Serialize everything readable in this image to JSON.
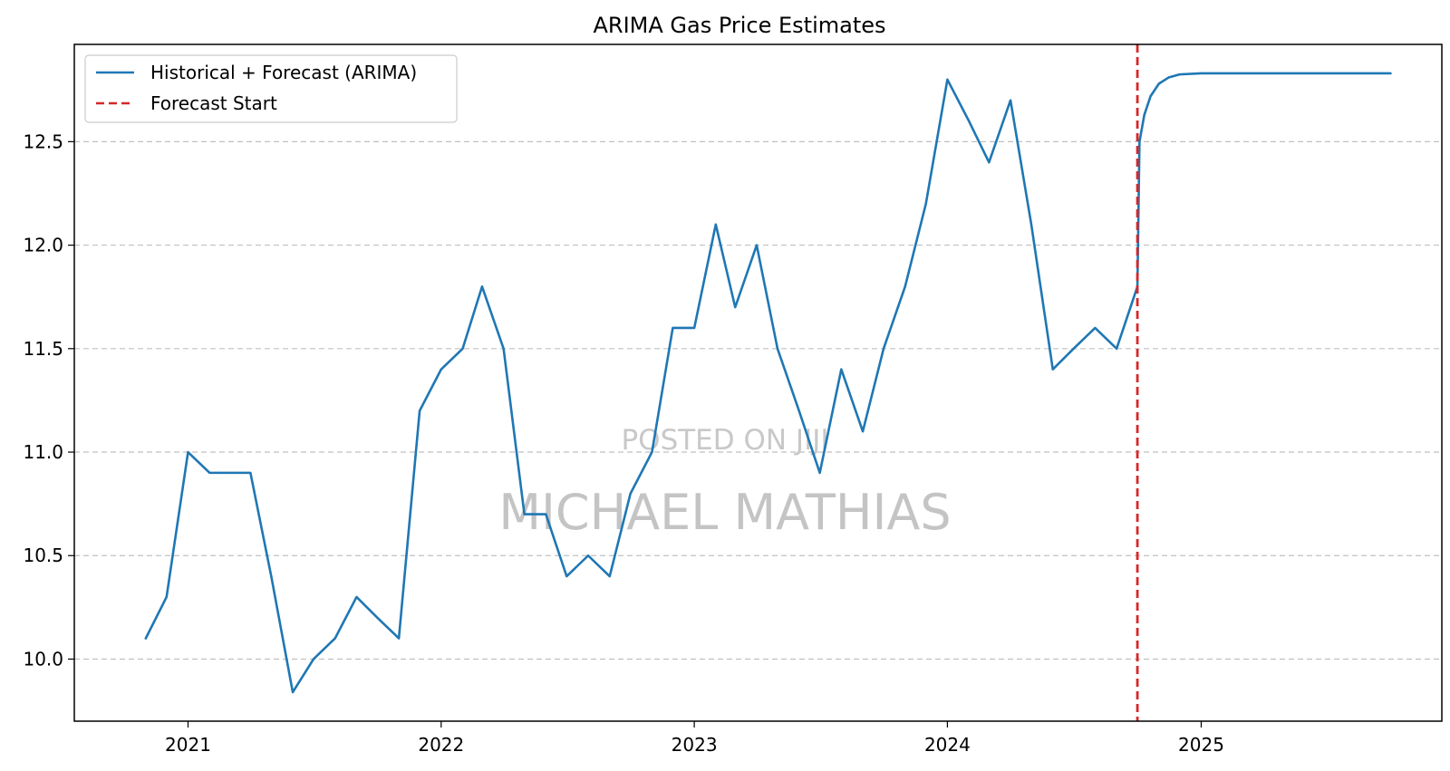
{
  "chart_data": {
    "type": "line",
    "title": "ARIMA Gas Price Estimates",
    "xlabel": "",
    "ylabel": "",
    "xlim": [
      "2020-07-21",
      "2025-12-14"
    ],
    "ylim": [
      9.7,
      12.97
    ],
    "x_ticks": [
      "2021",
      "2022",
      "2023",
      "2024",
      "2025"
    ],
    "y_ticks": [
      "10.0",
      "10.5",
      "11.0",
      "11.5",
      "12.0",
      "12.5"
    ],
    "grid": "horizontal dashed",
    "legend_position": "top-left",
    "colors": {
      "series": "#1f77b4",
      "forecast_start": "#d62728",
      "grid": "#b0b0b0"
    },
    "series": [
      {
        "name": "Historical + Forecast (ARIMA)",
        "points": [
          [
            "2020-11-01",
            10.1
          ],
          [
            "2020-12-01",
            10.3
          ],
          [
            "2021-01-01",
            11.0
          ],
          [
            "2021-02-01",
            10.9
          ],
          [
            "2021-03-01",
            10.9
          ],
          [
            "2021-04-01",
            10.9
          ],
          [
            "2021-05-01",
            10.4
          ],
          [
            "2021-06-01",
            9.84
          ],
          [
            "2021-07-01",
            10.0
          ],
          [
            "2021-08-01",
            10.1
          ],
          [
            "2021-09-01",
            10.3
          ],
          [
            "2021-10-01",
            10.2
          ],
          [
            "2021-11-01",
            10.1
          ],
          [
            "2021-12-01",
            11.2
          ],
          [
            "2022-01-01",
            11.4
          ],
          [
            "2022-02-01",
            11.5
          ],
          [
            "2022-03-01",
            11.8
          ],
          [
            "2022-04-01",
            11.5
          ],
          [
            "2022-05-01",
            10.7
          ],
          [
            "2022-06-01",
            10.7
          ],
          [
            "2022-07-01",
            10.4
          ],
          [
            "2022-08-01",
            10.5
          ],
          [
            "2022-09-01",
            10.4
          ],
          [
            "2022-10-01",
            10.8
          ],
          [
            "2022-11-01",
            11.0
          ],
          [
            "2022-12-01",
            11.6
          ],
          [
            "2023-01-01",
            11.6
          ],
          [
            "2023-02-01",
            12.1
          ],
          [
            "2023-03-01",
            11.7
          ],
          [
            "2023-04-01",
            12.0
          ],
          [
            "2023-05-01",
            11.5
          ],
          [
            "2023-06-01",
            11.2
          ],
          [
            "2023-07-01",
            10.9
          ],
          [
            "2023-08-01",
            11.4
          ],
          [
            "2023-09-01",
            11.1
          ],
          [
            "2023-10-01",
            11.5
          ],
          [
            "2023-11-01",
            11.8
          ],
          [
            "2023-12-01",
            12.2
          ],
          [
            "2024-01-01",
            12.8
          ],
          [
            "2024-02-01",
            12.6
          ],
          [
            "2024-03-01",
            12.4
          ],
          [
            "2024-04-01",
            12.7
          ],
          [
            "2024-05-01",
            12.1
          ],
          [
            "2024-06-01",
            11.4
          ],
          [
            "2024-07-01",
            11.5
          ],
          [
            "2024-08-01",
            11.6
          ],
          [
            "2024-09-01",
            11.5
          ],
          [
            "2024-10-01",
            11.8
          ],
          [
            "2024-10-04",
            12.5
          ],
          [
            "2024-10-11",
            12.63
          ],
          [
            "2024-10-20",
            12.72
          ],
          [
            "2024-11-01",
            12.78
          ],
          [
            "2024-11-15",
            12.81
          ],
          [
            "2024-12-01",
            12.825
          ],
          [
            "2025-01-01",
            12.83
          ],
          [
            "2025-04-01",
            12.83
          ],
          [
            "2025-07-01",
            12.83
          ],
          [
            "2025-10-01",
            12.83
          ]
        ]
      }
    ],
    "reference_lines": [
      {
        "name": "Forecast Start",
        "x": "2024-10-01",
        "style": "dashed"
      }
    ],
    "watermark": {
      "line1": "POSTED ON JIJI",
      "line2": "MICHAEL MATHIAS"
    }
  }
}
